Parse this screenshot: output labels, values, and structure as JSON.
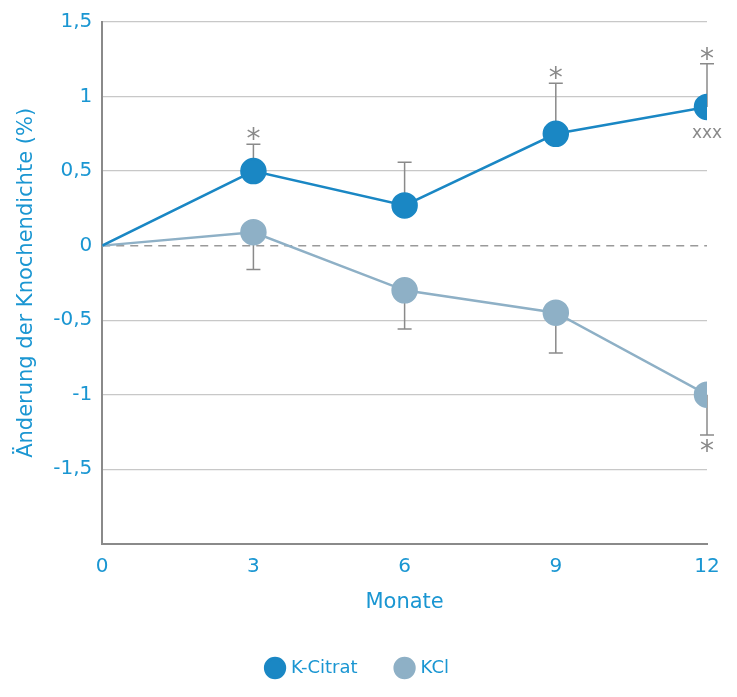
{
  "chart_data": {
    "type": "line",
    "x_label": "Monate",
    "y_label": "Änderung der Knochendichte (%)",
    "x": [
      0,
      3,
      6,
      9,
      12
    ],
    "xlim": [
      0,
      12
    ],
    "xticks": [
      0,
      3,
      6,
      9,
      12
    ],
    "ylim": [
      -2,
      1.5
    ],
    "yticks": [
      {
        "value": -1.5,
        "label": "-1,5"
      },
      -1,
      {
        "value": -0.5,
        "label": "-0,5"
      },
      0,
      {
        "value": 0.5,
        "label": "0,5"
      },
      1,
      {
        "value": 1.5,
        "label": "1,5"
      }
    ],
    "grid": true,
    "legend": "bottom",
    "series": [
      {
        "name": "K-Citrat",
        "color": "#1a87c4",
        "marker": "circle",
        "line_style": "solid",
        "values": [
          0,
          0.5,
          0.27,
          0.75,
          0.93
        ],
        "errors_plus": [
          null,
          0.18,
          0.29,
          0.34,
          0.29
        ]
      },
      {
        "name": "KCl",
        "color": "#8eb0c6",
        "marker": "circle",
        "line_style": "solid",
        "values": [
          0,
          0.09,
          -0.3,
          -0.45,
          -1.0
        ],
        "errors_minus": [
          null,
          0.25,
          0.26,
          0.27,
          0.27
        ]
      }
    ],
    "annotations": [
      {
        "text": "*",
        "x": 3,
        "series": "K-Citrat",
        "side": "above"
      },
      {
        "text": "*",
        "x": 9,
        "series": "K-Citrat",
        "side": "above"
      },
      {
        "text": "*",
        "x": 12,
        "series": "K-Citrat",
        "side": "above"
      },
      {
        "text": "xxx",
        "x": 12,
        "series": "K-Citrat",
        "side": "below"
      },
      {
        "text": "*",
        "x": 12,
        "series": "KCl",
        "side": "below"
      }
    ]
  }
}
